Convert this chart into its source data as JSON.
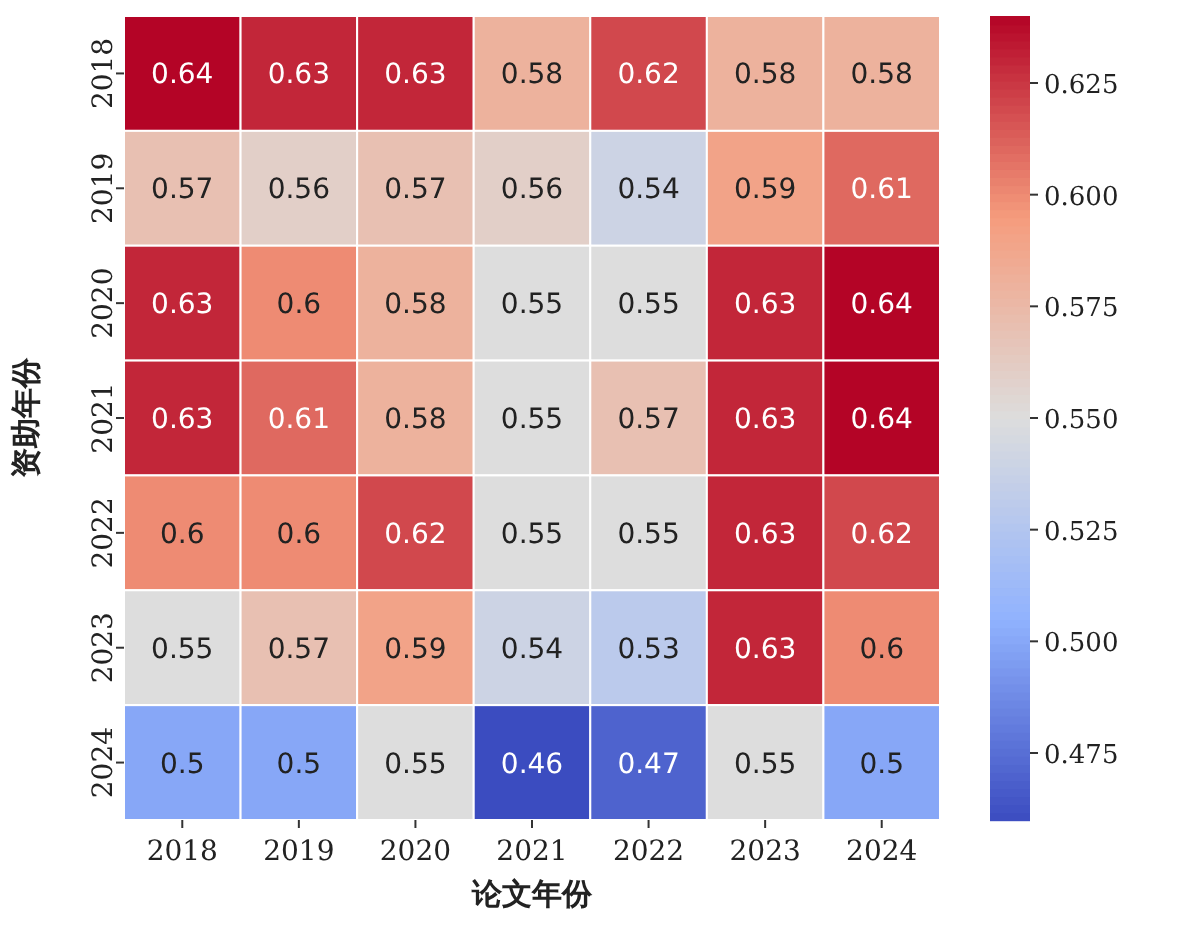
{
  "chart_data": {
    "type": "heatmap",
    "xlabel": "论文年份",
    "ylabel": "资助年份",
    "categories": [
      "2018",
      "2019",
      "2020",
      "2021",
      "2022",
      "2023",
      "2024"
    ],
    "y_categories": [
      "2018",
      "2019",
      "2020",
      "2021",
      "2022",
      "2023",
      "2024"
    ],
    "cells": [
      [
        0.64,
        0.63,
        0.63,
        0.58,
        0.62,
        0.58,
        0.58
      ],
      [
        0.57,
        0.56,
        0.57,
        0.56,
        0.54,
        0.59,
        0.61
      ],
      [
        0.63,
        0.6,
        0.58,
        0.55,
        0.55,
        0.63,
        0.64
      ],
      [
        0.63,
        0.61,
        0.58,
        0.55,
        0.57,
        0.63,
        0.64
      ],
      [
        0.6,
        0.6,
        0.62,
        0.55,
        0.55,
        0.63,
        0.62
      ],
      [
        0.55,
        0.57,
        0.59,
        0.54,
        0.53,
        0.63,
        0.6
      ],
      [
        0.5,
        0.5,
        0.55,
        0.46,
        0.47,
        0.55,
        0.5
      ]
    ],
    "data_labels": true,
    "clim": [
      0.46,
      0.64
    ],
    "cticks": [
      0.475,
      {
        "value": 0.5,
        "label": "0.500"
      },
      0.525,
      {
        "value": 0.55,
        "label": "0.550"
      },
      0.575,
      {
        "value": 0.6,
        "label": "0.600"
      },
      0.625
    ]
  }
}
